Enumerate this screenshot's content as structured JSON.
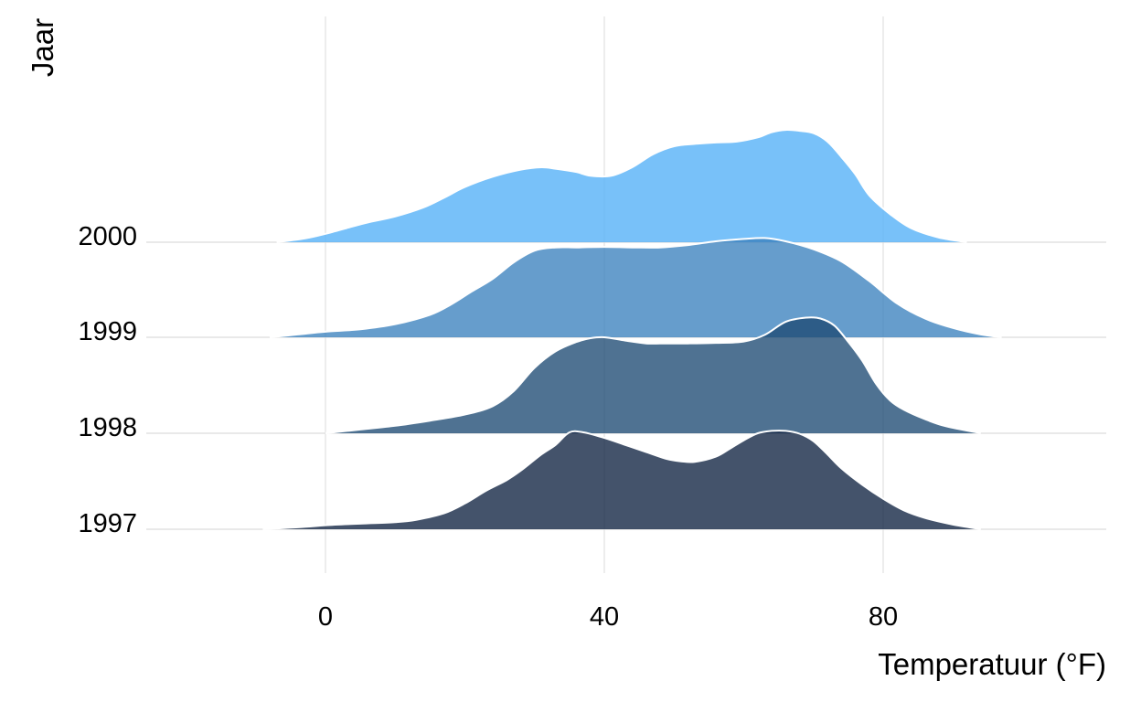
{
  "chart_data": {
    "type": "area",
    "subtype": "ridgeline",
    "xlabel": "Temperatuur (°F)",
    "ylabel": "Jaar",
    "xlim": [
      -26,
      112
    ],
    "xticks": [
      0,
      40,
      80
    ],
    "grid": true,
    "legend": "none",
    "outline_color": "#ffffff",
    "series": [
      {
        "name": "1997",
        "color": "#0F2341",
        "opacity": 0.78,
        "x": [
          -9,
          -3,
          0,
          5,
          10,
          13,
          17,
          20,
          23,
          26,
          28,
          31,
          33,
          35,
          37,
          40,
          43,
          46,
          49,
          51,
          53,
          56,
          58,
          60,
          62,
          64,
          66,
          68,
          70,
          72,
          74,
          77,
          80,
          83,
          86,
          90,
          94
        ],
        "density": [
          0.0,
          0.05,
          0.085,
          0.12,
          0.15,
          0.2,
          0.34,
          0.55,
          0.82,
          1.05,
          1.25,
          1.6,
          1.8,
          2.07,
          2.07,
          1.95,
          1.8,
          1.65,
          1.5,
          1.45,
          1.44,
          1.55,
          1.72,
          1.9,
          2.05,
          2.1,
          2.1,
          2.04,
          1.88,
          1.6,
          1.3,
          0.95,
          0.65,
          0.4,
          0.24,
          0.1,
          0.0
        ]
      },
      {
        "name": "1998",
        "color": "#1D4A73",
        "opacity": 0.78,
        "x": [
          0,
          5,
          10,
          15,
          20,
          24,
          27,
          30,
          33,
          36,
          38,
          40,
          43,
          46,
          49,
          52,
          56,
          60,
          63,
          66,
          69,
          71,
          73,
          75,
          77,
          79,
          81,
          83,
          86,
          89,
          94
        ],
        "density": [
          0.0,
          0.08,
          0.16,
          0.27,
          0.4,
          0.58,
          0.9,
          1.4,
          1.75,
          1.95,
          2.03,
          2.05,
          1.98,
          1.92,
          1.92,
          1.92,
          1.93,
          1.96,
          2.1,
          2.38,
          2.47,
          2.45,
          2.3,
          1.95,
          1.55,
          1.05,
          0.7,
          0.5,
          0.3,
          0.15,
          0.0
        ]
      },
      {
        "name": "1999",
        "color": "#3B82BE",
        "opacity": 0.78,
        "x": [
          -8,
          -4,
          0,
          5,
          10,
          15,
          18,
          21,
          24,
          27,
          30,
          33,
          36,
          40,
          44,
          48,
          52,
          56,
          60,
          63,
          66,
          70,
          74,
          78,
          82,
          86,
          90,
          94,
          97
        ],
        "density": [
          0.0,
          0.06,
          0.12,
          0.17,
          0.28,
          0.48,
          0.7,
          0.98,
          1.25,
          1.6,
          1.85,
          1.92,
          1.92,
          1.93,
          1.92,
          1.92,
          1.97,
          2.05,
          2.1,
          2.12,
          2.05,
          1.88,
          1.62,
          1.2,
          0.72,
          0.4,
          0.2,
          0.06,
          0.0
        ]
      },
      {
        "name": "2000",
        "color": "#56B1F7",
        "opacity": 0.8,
        "x": [
          -7,
          -3,
          0,
          3,
          6,
          10,
          14,
          17,
          20,
          24,
          28,
          31,
          33,
          36,
          38,
          41,
          44,
          47,
          50,
          53,
          56,
          59,
          62,
          64,
          66,
          68,
          70,
          72,
          74,
          76,
          78,
          81,
          84,
          88,
          92
        ],
        "density": [
          0.0,
          0.08,
          0.18,
          0.3,
          0.42,
          0.55,
          0.74,
          0.95,
          1.18,
          1.4,
          1.55,
          1.6,
          1.57,
          1.5,
          1.42,
          1.42,
          1.6,
          1.88,
          2.05,
          2.1,
          2.13,
          2.15,
          2.24,
          2.35,
          2.4,
          2.38,
          2.33,
          2.15,
          1.82,
          1.45,
          1.0,
          0.6,
          0.3,
          0.1,
          0.0
        ]
      }
    ]
  },
  "axis": {
    "xlabel": "Temperatuur (°F)",
    "ylabel": "Jaar",
    "xtick_labels": [
      "0",
      "40",
      "80"
    ],
    "ytick_labels": [
      "1997",
      "1998",
      "1999",
      "2000"
    ]
  }
}
